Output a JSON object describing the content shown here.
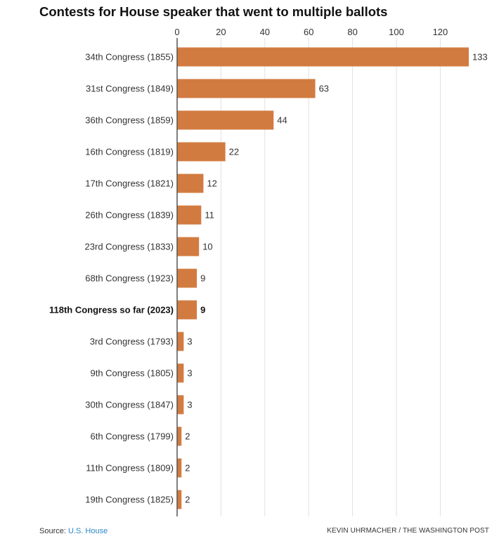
{
  "title": "Contests for House speaker that went to multiple ballots",
  "footer": {
    "source_label": "Source:",
    "source_name": "U.S. House",
    "credit": "KEVIN UHRMACHER / THE WASHINGTON POST"
  },
  "colors": {
    "bar": "#d27b40",
    "grid": "#e1e1e1",
    "axis": "#555555",
    "text": "#333333"
  },
  "chart_data": {
    "type": "bar",
    "orientation": "horizontal",
    "title": "Contests for House speaker that went to multiple ballots",
    "xlabel": "",
    "ylabel": "",
    "xlim": [
      0,
      133
    ],
    "xticks": [
      0,
      20,
      40,
      60,
      80,
      100,
      120
    ],
    "grid": true,
    "categories": [
      "34th Congress (1855)",
      "31st Congress (1849)",
      "36th Congress (1859)",
      "16th Congress (1819)",
      "17th Congress (1821)",
      "26th Congress (1839)",
      "23rd Congress (1833)",
      "68th Congress (1923)",
      "118th Congress so far (2023)",
      "3rd Congress (1793)",
      "9th Congress (1805)",
      "30th Congress (1847)",
      "6th Congress (1799)",
      "11th Congress (1809)",
      "19th Congress (1825)"
    ],
    "values": [
      133,
      63,
      44,
      22,
      12,
      11,
      10,
      9,
      9,
      3,
      3,
      3,
      2,
      2,
      2
    ],
    "highlight": [
      "118th Congress so far (2023)"
    ]
  }
}
